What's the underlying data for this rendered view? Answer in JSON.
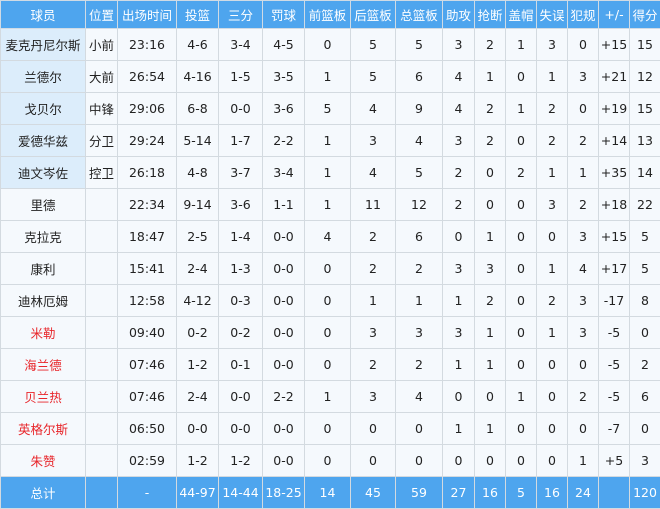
{
  "headers": [
    "球员",
    "位置",
    "出场时间",
    "投篮",
    "三分",
    "罚球",
    "前篮板",
    "后篮板",
    "总篮板",
    "助攻",
    "抢断",
    "盖帽",
    "失误",
    "犯规",
    "+/-",
    "得分"
  ],
  "rows": [
    {
      "name": "麦克丹尼尔斯",
      "pos": "小前",
      "starter": true,
      "red": false,
      "stats": [
        "23:16",
        "4-6",
        "3-4",
        "4-5",
        "0",
        "5",
        "5",
        "3",
        "2",
        "1",
        "3",
        "0",
        "+15",
        "15"
      ]
    },
    {
      "name": "兰德尔",
      "pos": "大前",
      "starter": true,
      "red": false,
      "stats": [
        "26:54",
        "4-16",
        "1-5",
        "3-5",
        "1",
        "5",
        "6",
        "4",
        "1",
        "0",
        "1",
        "3",
        "+21",
        "12"
      ]
    },
    {
      "name": "戈贝尔",
      "pos": "中锋",
      "starter": true,
      "red": false,
      "stats": [
        "29:06",
        "6-8",
        "0-0",
        "3-6",
        "5",
        "4",
        "9",
        "4",
        "2",
        "1",
        "2",
        "0",
        "+19",
        "15"
      ]
    },
    {
      "name": "爱德华兹",
      "pos": "分卫",
      "starter": true,
      "red": false,
      "stats": [
        "29:24",
        "5-14",
        "1-7",
        "2-2",
        "1",
        "3",
        "4",
        "3",
        "2",
        "0",
        "2",
        "2",
        "+14",
        "13"
      ]
    },
    {
      "name": "迪文岑佐",
      "pos": "控卫",
      "starter": true,
      "red": false,
      "stats": [
        "26:18",
        "4-8",
        "3-7",
        "3-4",
        "1",
        "4",
        "5",
        "2",
        "0",
        "2",
        "1",
        "1",
        "+35",
        "14"
      ]
    },
    {
      "name": "里德",
      "pos": "",
      "starter": false,
      "red": false,
      "stats": [
        "22:34",
        "9-14",
        "3-6",
        "1-1",
        "1",
        "11",
        "12",
        "2",
        "0",
        "0",
        "3",
        "2",
        "+18",
        "22"
      ]
    },
    {
      "name": "克拉克",
      "pos": "",
      "starter": false,
      "red": false,
      "stats": [
        "18:47",
        "2-5",
        "1-4",
        "0-0",
        "4",
        "2",
        "6",
        "0",
        "1",
        "0",
        "0",
        "3",
        "+15",
        "5"
      ]
    },
    {
      "name": "康利",
      "pos": "",
      "starter": false,
      "red": false,
      "stats": [
        "15:41",
        "2-4",
        "1-3",
        "0-0",
        "0",
        "2",
        "2",
        "3",
        "3",
        "0",
        "1",
        "4",
        "+17",
        "5"
      ]
    },
    {
      "name": "迪林厄姆",
      "pos": "",
      "starter": false,
      "red": false,
      "stats": [
        "12:58",
        "4-12",
        "0-3",
        "0-0",
        "0",
        "1",
        "1",
        "1",
        "2",
        "0",
        "2",
        "3",
        "-17",
        "8"
      ]
    },
    {
      "name": "米勒",
      "pos": "",
      "starter": false,
      "red": true,
      "stats": [
        "09:40",
        "0-2",
        "0-2",
        "0-0",
        "0",
        "3",
        "3",
        "3",
        "1",
        "0",
        "1",
        "3",
        "-5",
        "0"
      ]
    },
    {
      "name": "海兰德",
      "pos": "",
      "starter": false,
      "red": true,
      "stats": [
        "07:46",
        "1-2",
        "0-1",
        "0-0",
        "0",
        "2",
        "2",
        "1",
        "1",
        "0",
        "0",
        "0",
        "-5",
        "2"
      ]
    },
    {
      "name": "贝兰热",
      "pos": "",
      "starter": false,
      "red": true,
      "stats": [
        "07:46",
        "2-4",
        "0-0",
        "2-2",
        "1",
        "3",
        "4",
        "0",
        "0",
        "1",
        "0",
        "2",
        "-5",
        "6"
      ]
    },
    {
      "name": "英格尔斯",
      "pos": "",
      "starter": false,
      "red": true,
      "stats": [
        "06:50",
        "0-0",
        "0-0",
        "0-0",
        "0",
        "0",
        "0",
        "1",
        "1",
        "0",
        "0",
        "0",
        "-7",
        "0"
      ]
    },
    {
      "name": "朱赞",
      "pos": "",
      "starter": false,
      "red": true,
      "stats": [
        "02:59",
        "1-2",
        "1-2",
        "0-0",
        "0",
        "0",
        "0",
        "0",
        "0",
        "0",
        "0",
        "1",
        "+5",
        "3"
      ]
    }
  ],
  "total": {
    "name": "总计",
    "pos": "",
    "stats": [
      "-",
      "44-97",
      "14-44",
      "18-25",
      "14",
      "45",
      "59",
      "27",
      "16",
      "5",
      "16",
      "24",
      "",
      "120"
    ]
  },
  "colors": {
    "header": "#4ea5ee",
    "starter_bg": "#dcedfb",
    "row_bg": "#f5f9fd",
    "red_name": "#e8262b"
  }
}
